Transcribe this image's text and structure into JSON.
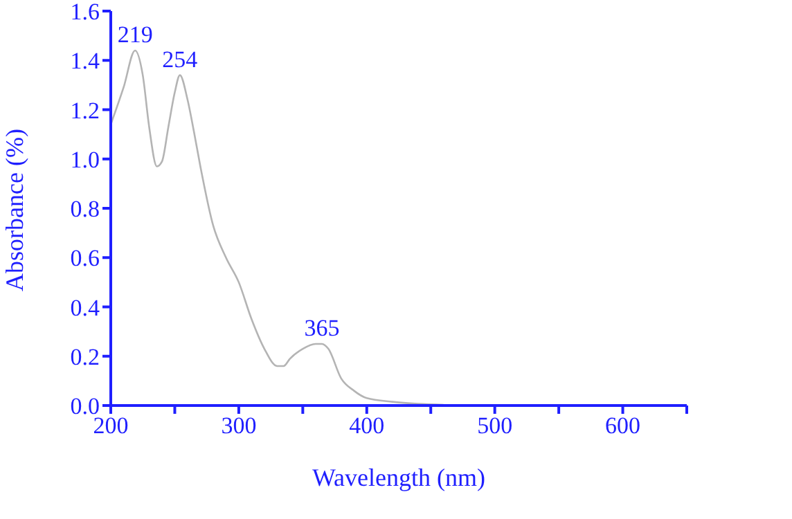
{
  "chart_data": {
    "type": "line",
    "xlabel": "Wavelength (nm)",
    "ylabel": "Absorbance (%)",
    "x": [
      200,
      210,
      219,
      225,
      230,
      236,
      240,
      245,
      250,
      254,
      260,
      265,
      270,
      280,
      290,
      300,
      310,
      320,
      330,
      335,
      340,
      350,
      360,
      365,
      370,
      380,
      390,
      400,
      420,
      440,
      460
    ],
    "series": [
      {
        "color": "#b4b4b4",
        "values": [
          1.14,
          1.29,
          1.44,
          1.34,
          1.13,
          0.97,
          0.99,
          1.13,
          1.27,
          1.34,
          1.24,
          1.11,
          0.97,
          0.73,
          0.6,
          0.5,
          0.35,
          0.23,
          0.16,
          0.16,
          0.19,
          0.23,
          0.25,
          0.25,
          0.23,
          0.11,
          0.06,
          0.03,
          0.015,
          0.007,
          0.003
        ]
      }
    ],
    "xlim": [
      200,
      650
    ],
    "xticks": [
      200,
      {
        "value": 250,
        "label": null
      },
      300,
      {
        "value": 350,
        "label": null
      },
      400,
      {
        "value": 450,
        "label": null
      },
      500,
      {
        "value": 550,
        "label": null
      },
      600,
      {
        "value": 650,
        "label": null
      }
    ],
    "ylim": [
      0,
      1.6
    ],
    "yticks": [
      {
        "value": 0,
        "label": "0.0"
      },
      {
        "value": 0.2,
        "label": "0.2"
      },
      {
        "value": 0.4,
        "label": "0.4"
      },
      {
        "value": 0.6,
        "label": "0.6"
      },
      {
        "value": 0.8,
        "label": "0.8"
      },
      {
        "value": 1,
        "label": "1.0"
      },
      {
        "value": 1.2,
        "label": "1.2"
      },
      {
        "value": 1.4,
        "label": "1.4"
      },
      {
        "value": 1.6,
        "label": "1.6"
      }
    ],
    "annotations": [
      {
        "text": "219",
        "x": 219,
        "y": 1.44
      },
      {
        "text": "254",
        "x": 254,
        "y": 1.34
      },
      {
        "text": "365",
        "x": 365,
        "y": 0.25
      }
    ],
    "grid": false,
    "legend": false,
    "marker": "none",
    "line_style": "solid"
  }
}
